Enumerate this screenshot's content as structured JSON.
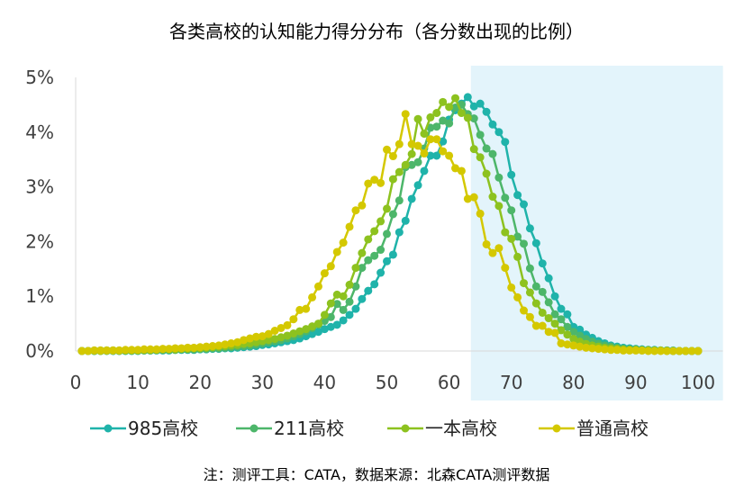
{
  "chart_data": {
    "type": "line",
    "title": "各类高校的认知能力得分分布（各分数出现的比例）",
    "note": "注：测评工具：CATA，数据来源：北森CATA测评数据",
    "xlabel": "",
    "ylabel": "",
    "xlim": [
      0,
      100
    ],
    "ylim": [
      0,
      5
    ],
    "x_ticks": [
      "0",
      "10",
      "20",
      "30",
      "40",
      "50",
      "60",
      "70",
      "80",
      "90",
      "100"
    ],
    "y_ticks": [
      "0%",
      "1%",
      "2%",
      "3%",
      "4%",
      "5%"
    ],
    "grid": false,
    "legend_position": "bottom",
    "highlight_x_range": [
      63.5,
      104
    ],
    "highlight_color": "#E3F4FB",
    "x_start": 1,
    "series": [
      {
        "name": "985高校",
        "color": "#1FB3AA",
        "values": [
          0,
          0,
          0,
          0,
          0.01,
          0,
          0,
          0,
          0,
          0,
          0.01,
          0.01,
          0.01,
          0.01,
          0.01,
          0.02,
          0.02,
          0.02,
          0.02,
          0.03,
          0.03,
          0.04,
          0.04,
          0.05,
          0.05,
          0.06,
          0.07,
          0.08,
          0.09,
          0.11,
          0.12,
          0.14,
          0.16,
          0.18,
          0.2,
          0.23,
          0.27,
          0.31,
          0.35,
          0.4,
          0.44,
          0.48,
          0.56,
          0.66,
          0.77,
          0.95,
          1.1,
          1.22,
          1.43,
          1.64,
          1.76,
          2.17,
          2.38,
          2.78,
          3.03,
          3.29,
          3.57,
          3.57,
          3.83,
          4.23,
          4.4,
          4.52,
          4.64,
          4.47,
          4.52,
          4.37,
          4.14,
          4.0,
          3.82,
          3.22,
          2.85,
          2.68,
          2.24,
          1.97,
          1.6,
          1.33,
          1.0,
          0.77,
          0.67,
          0.44,
          0.39,
          0.3,
          0.24,
          0.18,
          0.14,
          0.1,
          0.08,
          0.06,
          0.05,
          0.04,
          0.03,
          0.02,
          0.02,
          0.01,
          0.01,
          0.01,
          0,
          0,
          0,
          0
        ]
      },
      {
        "name": "211高校",
        "color": "#4DB66A",
        "values": [
          0,
          0,
          0,
          0.01,
          0,
          0.01,
          0,
          0.01,
          0.01,
          0.01,
          0.01,
          0.01,
          0.02,
          0.02,
          0.02,
          0.02,
          0.03,
          0.03,
          0.03,
          0.04,
          0.04,
          0.05,
          0.05,
          0.06,
          0.07,
          0.08,
          0.09,
          0.1,
          0.12,
          0.14,
          0.16,
          0.18,
          0.2,
          0.23,
          0.27,
          0.31,
          0.36,
          0.42,
          0.48,
          0.55,
          0.62,
          0.86,
          0.75,
          0.9,
          1.18,
          1.52,
          1.66,
          1.74,
          1.85,
          2.14,
          2.5,
          2.75,
          3.36,
          3.4,
          3.45,
          3.7,
          4.08,
          4.1,
          4.21,
          4.16,
          4.45,
          4.5,
          4.33,
          4.25,
          3.95,
          3.7,
          3.6,
          3.17,
          2.8,
          2.57,
          2.09,
          1.96,
          1.51,
          1.18,
          1.08,
          0.89,
          0.67,
          0.58,
          0.44,
          0.35,
          0.28,
          0.22,
          0.17,
          0.13,
          0.1,
          0.08,
          0.06,
          0.04,
          0.03,
          0.03,
          0.02,
          0.02,
          0.01,
          0.01,
          0.01,
          0,
          0,
          0,
          0,
          0
        ]
      },
      {
        "name": "一本高校",
        "color": "#8DC21F",
        "values": [
          0,
          0,
          0.01,
          0,
          0.01,
          0.01,
          0.01,
          0.01,
          0.01,
          0.01,
          0.02,
          0.02,
          0.02,
          0.03,
          0.03,
          0.03,
          0.04,
          0.04,
          0.05,
          0.05,
          0.06,
          0.07,
          0.08,
          0.09,
          0.1,
          0.11,
          0.13,
          0.14,
          0.16,
          0.18,
          0.2,
          0.22,
          0.25,
          0.28,
          0.32,
          0.36,
          0.4,
          0.45,
          0.5,
          0.66,
          0.87,
          1.03,
          1.0,
          1.21,
          1.52,
          1.79,
          2.04,
          2.19,
          2.37,
          2.6,
          3.14,
          3.27,
          3.4,
          3.6,
          4.24,
          3.97,
          4.27,
          4.35,
          4.55,
          4.46,
          4.62,
          4.35,
          4.26,
          3.69,
          3.54,
          3.24,
          2.82,
          2.65,
          2.17,
          2.05,
          1.72,
          1.24,
          1.07,
          0.87,
          0.7,
          0.6,
          0.5,
          0.38,
          0.3,
          0.22,
          0.17,
          0.13,
          0.1,
          0.08,
          0.06,
          0.05,
          0.04,
          0.03,
          0.02,
          0.02,
          0.01,
          0.01,
          0.01,
          0.01,
          0,
          0,
          0,
          0,
          0,
          0
        ]
      },
      {
        "name": "普通高校",
        "color": "#D4C800",
        "values": [
          0,
          0,
          0.01,
          0.01,
          0.01,
          0.01,
          0.01,
          0.02,
          0.02,
          0.02,
          0.03,
          0.03,
          0.03,
          0.04,
          0.04,
          0.05,
          0.05,
          0.06,
          0.06,
          0.07,
          0.08,
          0.09,
          0.1,
          0.12,
          0.14,
          0.16,
          0.2,
          0.23,
          0.26,
          0.27,
          0.31,
          0.37,
          0.42,
          0.47,
          0.58,
          0.75,
          0.77,
          0.98,
          1.18,
          1.42,
          1.55,
          1.81,
          1.98,
          2.27,
          2.57,
          2.66,
          3.06,
          3.13,
          3.07,
          3.68,
          3.56,
          3.78,
          4.33,
          3.78,
          3.75,
          3.61,
          3.87,
          3.87,
          3.65,
          3.57,
          3.34,
          3.29,
          2.78,
          2.81,
          2.51,
          1.95,
          1.79,
          1.88,
          1.52,
          1.16,
          0.98,
          0.74,
          0.62,
          0.46,
          0.46,
          0.35,
          0.33,
          0.14,
          0.12,
          0.1,
          0.08,
          0.06,
          0.05,
          0.04,
          0.03,
          0.02,
          0.02,
          0.01,
          0.01,
          0.01,
          0.01,
          0,
          0,
          0,
          0,
          0,
          0,
          0,
          0,
          0
        ]
      }
    ]
  }
}
